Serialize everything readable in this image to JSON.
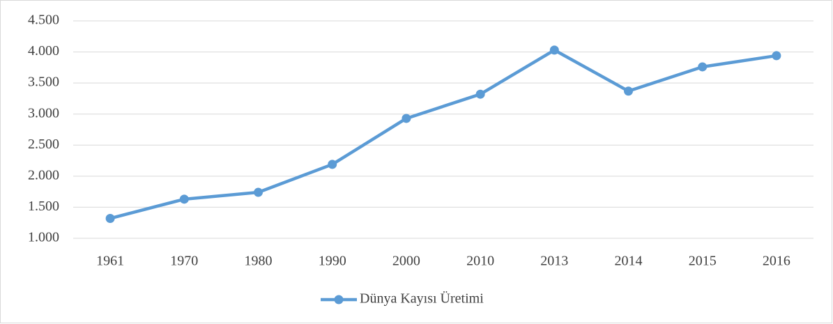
{
  "chart_data": {
    "type": "line",
    "categories": [
      "1961",
      "1970",
      "1980",
      "1990",
      "2000",
      "2010",
      "2013",
      "2014",
      "2015",
      "2016"
    ],
    "series": [
      {
        "name": "Dünya Kayısı Üretimi",
        "color": "#5b9bd5",
        "values": [
          1320,
          1630,
          1740,
          2190,
          2930,
          3320,
          4030,
          3370,
          3760,
          3940
        ]
      }
    ],
    "ylim": [
      1000,
      4500
    ],
    "yticks": [
      {
        "value": 1000,
        "label": "1.000"
      },
      {
        "value": 1500,
        "label": "1.500"
      },
      {
        "value": 2000,
        "label": "2.000"
      },
      {
        "value": 2500,
        "label": "2.500"
      },
      {
        "value": 3000,
        "label": "3.000"
      },
      {
        "value": 3500,
        "label": "3.500"
      },
      {
        "value": 4000,
        "label": "4.000"
      },
      {
        "value": 4500,
        "label": "4.500"
      }
    ],
    "grid": true,
    "legend": "bottom"
  }
}
